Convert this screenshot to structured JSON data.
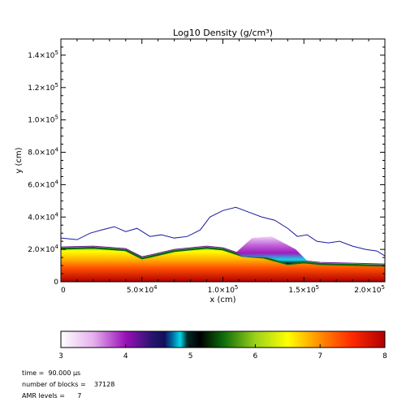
{
  "chart_data": {
    "type": "heatmap",
    "title": "Log10 Density (g/cm³)",
    "xlabel": "x (cm)",
    "ylabel": "y (cm)",
    "xlim": [
      0,
      200000
    ],
    "ylim": [
      0,
      150000
    ],
    "x_ticks": [
      {
        "value": 0,
        "mantissa": "0",
        "exponent": ""
      },
      {
        "value": 50000,
        "mantissa": "5.0×10",
        "exponent": "4"
      },
      {
        "value": 100000,
        "mantissa": "1.0×10",
        "exponent": "5"
      },
      {
        "value": 150000,
        "mantissa": "1.5×10",
        "exponent": "5"
      },
      {
        "value": 200000,
        "mantissa": "2.0×10",
        "exponent": "5"
      }
    ],
    "y_ticks": [
      {
        "value": 0,
        "mantissa": "0",
        "exponent": ""
      },
      {
        "value": 20000,
        "mantissa": "2.0×10",
        "exponent": "4"
      },
      {
        "value": 40000,
        "mantissa": "4.0×10",
        "exponent": "4"
      },
      {
        "value": 60000,
        "mantissa": "6.0×10",
        "exponent": "4"
      },
      {
        "value": 80000,
        "mantissa": "8.0×10",
        "exponent": "4"
      },
      {
        "value": 100000,
        "mantissa": "1.0×10",
        "exponent": "5"
      },
      {
        "value": 120000,
        "mantissa": "1.2×10",
        "exponent": "5"
      },
      {
        "value": 140000,
        "mantissa": "1.4×10",
        "exponent": "5"
      }
    ],
    "colorbar": {
      "range": [
        3,
        8
      ],
      "tick_labels": [
        "3",
        "4",
        "5",
        "6",
        "7",
        "8"
      ],
      "colors": [
        {
          "v": 3.0,
          "c": "#ffffff"
        },
        {
          "v": 3.5,
          "c": "#e6b0ee"
        },
        {
          "v": 4.0,
          "c": "#9a10b8"
        },
        {
          "v": 4.4,
          "c": "#2a1470"
        },
        {
          "v": 4.6,
          "c": "#10105a"
        },
        {
          "v": 4.72,
          "c": "#006aa0"
        },
        {
          "v": 4.84,
          "c": "#00d8e8"
        },
        {
          "v": 4.95,
          "c": "#002a28"
        },
        {
          "v": 5.15,
          "c": "#000000"
        },
        {
          "v": 5.5,
          "c": "#0c6a0c"
        },
        {
          "v": 6.0,
          "c": "#9ad21a"
        },
        {
          "v": 6.5,
          "c": "#ffff00"
        },
        {
          "v": 7.0,
          "c": "#ff8c00"
        },
        {
          "v": 7.5,
          "c": "#ff2800"
        },
        {
          "v": 8.0,
          "c": "#b00000"
        }
      ]
    },
    "dense_layer_top": [
      [
        0,
        20500
      ],
      [
        20000,
        21000
      ],
      [
        40000,
        19500
      ],
      [
        50000,
        14500
      ],
      [
        55000,
        15500
      ],
      [
        70000,
        19000
      ],
      [
        90000,
        21000
      ],
      [
        100000,
        20000
      ],
      [
        112000,
        16000
      ],
      [
        125000,
        15000
      ],
      [
        140000,
        11000
      ],
      [
        150000,
        12000
      ],
      [
        160000,
        11000
      ],
      [
        200000,
        10000
      ]
    ],
    "low_density_bump": [
      [
        108000,
        18000
      ],
      [
        118000,
        27000
      ],
      [
        130000,
        28000
      ],
      [
        145000,
        20000
      ],
      [
        152000,
        13000
      ],
      [
        140000,
        11000
      ],
      [
        128000,
        15000
      ],
      [
        112000,
        15500
      ]
    ],
    "density_contour": [
      [
        0,
        27000
      ],
      [
        10000,
        26000
      ],
      [
        18000,
        30000
      ],
      [
        25000,
        32000
      ],
      [
        33000,
        34000
      ],
      [
        40000,
        31000
      ],
      [
        47000,
        33000
      ],
      [
        55000,
        28000
      ],
      [
        62000,
        29000
      ],
      [
        70000,
        27000
      ],
      [
        78000,
        28000
      ],
      [
        86000,
        32000
      ],
      [
        92000,
        40000
      ],
      [
        100000,
        44000
      ],
      [
        108000,
        46000
      ],
      [
        116000,
        43000
      ],
      [
        124000,
        40000
      ],
      [
        132000,
        38000
      ],
      [
        140000,
        33000
      ],
      [
        146000,
        28000
      ],
      [
        152000,
        29000
      ],
      [
        158000,
        25000
      ],
      [
        165000,
        24000
      ],
      [
        172000,
        25000
      ],
      [
        180000,
        22000
      ],
      [
        188000,
        20000
      ],
      [
        195000,
        19000
      ],
      [
        200000,
        16000
      ]
    ]
  },
  "info": {
    "time_label": "time =",
    "time_value": "90.000 μs",
    "blocks_label": "number of blocks =",
    "blocks_value": "37128",
    "amr_label": "AMR levels =",
    "amr_value": "7"
  }
}
